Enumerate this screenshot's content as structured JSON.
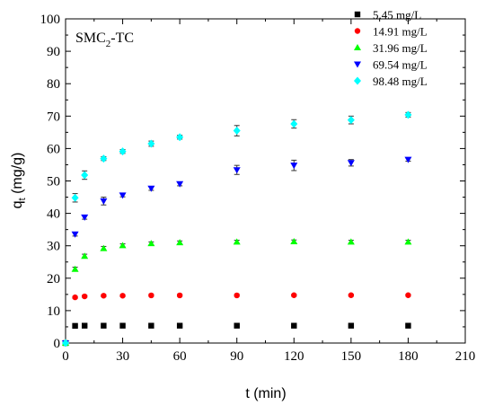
{
  "chart_data": {
    "type": "scatter",
    "annotation": {
      "main": "SMC",
      "sub": "2",
      "suffix": "-TC"
    },
    "xlabel": "t (min)",
    "ylabel": {
      "main": "q",
      "sub": "t",
      "suffix": " (mg/g)"
    },
    "xlim": [
      0,
      210
    ],
    "ylim": [
      0,
      100
    ],
    "xticks": [
      0,
      30,
      60,
      90,
      120,
      150,
      180,
      210
    ],
    "yticks": [
      0,
      10,
      20,
      30,
      40,
      50,
      60,
      70,
      80,
      90,
      100
    ],
    "grid": false,
    "legend_position": "top-right",
    "series": [
      {
        "name": "5.45  mg/L",
        "color": "#000000",
        "marker": "square",
        "x": [
          0,
          5,
          10,
          20,
          30,
          45,
          60,
          90,
          120,
          150,
          180
        ],
        "y": [
          0,
          5.3,
          5.35,
          5.35,
          5.35,
          5.35,
          5.35,
          5.35,
          5.35,
          5.35,
          5.35
        ],
        "err": [
          0,
          0.25,
          0.25,
          0.25,
          0.25,
          0.25,
          0.25,
          0.25,
          0.25,
          0.25,
          0.25
        ]
      },
      {
        "name": "14.91 mg/L",
        "color": "#ff0000",
        "marker": "circle",
        "x": [
          0,
          5,
          10,
          20,
          30,
          45,
          60,
          90,
          120,
          150,
          180
        ],
        "y": [
          0,
          14.1,
          14.4,
          14.6,
          14.6,
          14.7,
          14.7,
          14.7,
          14.75,
          14.75,
          14.75
        ],
        "err": [
          0,
          0.3,
          0.3,
          0.3,
          0.3,
          0.3,
          0.3,
          0.3,
          0.3,
          0.3,
          0.3
        ]
      },
      {
        "name": "31.96 mg/L",
        "color": "#00ff00",
        "marker": "triangle-up",
        "x": [
          0,
          5,
          10,
          20,
          30,
          45,
          60,
          90,
          120,
          150,
          180
        ],
        "y": [
          0,
          22.8,
          26.8,
          29.2,
          30.1,
          30.7,
          31.0,
          31.2,
          31.3,
          31.2,
          31.2
        ],
        "err": [
          0,
          0.6,
          0.6,
          0.6,
          0.5,
          0.5,
          0.5,
          0.5,
          0.5,
          0.5,
          0.5
        ]
      },
      {
        "name": "69.54 mg/L",
        "color": "#0000ff",
        "marker": "triangle-down",
        "x": [
          0,
          5,
          10,
          20,
          30,
          45,
          60,
          90,
          120,
          150,
          180
        ],
        "y": [
          0,
          33.6,
          38.8,
          43.8,
          45.6,
          47.7,
          49.1,
          53.4,
          54.8,
          55.6,
          56.6
        ],
        "err": [
          0,
          0.6,
          0.6,
          1.2,
          0.5,
          0.6,
          0.6,
          1.4,
          1.6,
          1.0,
          0.5
        ]
      },
      {
        "name": "98.48 mg/L",
        "color": "#00ffff",
        "marker": "diamond",
        "x": [
          0,
          5,
          10,
          20,
          30,
          45,
          60,
          90,
          120,
          150,
          180
        ],
        "y": [
          0,
          44.8,
          51.8,
          56.9,
          59.1,
          61.5,
          63.5,
          65.5,
          67.6,
          68.8,
          70.4
        ],
        "err": [
          0,
          1.3,
          1.3,
          0.6,
          0.6,
          0.8,
          0.6,
          1.6,
          1.3,
          1.2,
          0.7
        ]
      }
    ]
  }
}
